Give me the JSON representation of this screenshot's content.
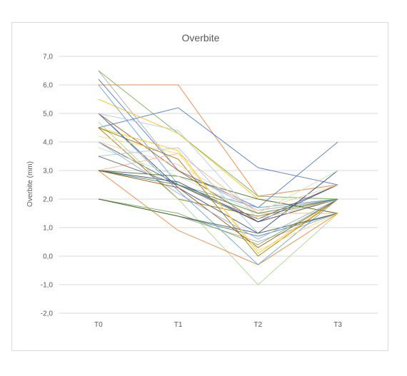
{
  "chart_data": {
    "type": "line",
    "title": "Overbite",
    "xlabel": "",
    "ylabel": "Overbite (mm)",
    "categories": [
      "T0",
      "T1",
      "T2",
      "T3"
    ],
    "ylim": [
      -2,
      7
    ],
    "yticks": [
      -2,
      -1,
      0,
      1,
      2,
      3,
      4,
      5,
      6,
      7
    ],
    "ytick_labels": [
      "-2,0",
      "-1,0",
      "0,0",
      "1,0",
      "2,0",
      "3,0",
      "4,0",
      "5,0",
      "6,0",
      "7,0"
    ],
    "grid": true,
    "legend": "none",
    "series": [
      {
        "color": "#ed7d31",
        "values": [
          6.0,
          6.0,
          2.1,
          2.5
        ]
      },
      {
        "color": "#4472c4",
        "values": [
          4.5,
          5.2,
          3.1,
          2.5
        ]
      },
      {
        "color": "#4472c4",
        "values": [
          6.2,
          3.0,
          1.7,
          4.0
        ]
      },
      {
        "color": "#a5a5a5",
        "values": [
          6.5,
          3.0,
          1.6,
          2.0
        ]
      },
      {
        "color": "#70ad47",
        "values": [
          6.5,
          4.3,
          2.1,
          2.0
        ]
      },
      {
        "color": "#ffc000",
        "values": [
          5.5,
          4.3,
          2.0,
          1.5
        ]
      },
      {
        "color": "#5b9bd5",
        "values": [
          6.0,
          2.5,
          1.7,
          2.0
        ]
      },
      {
        "color": "#9e480e",
        "values": [
          5.0,
          3.0,
          1.2,
          2.0
        ]
      },
      {
        "color": "#264478",
        "values": [
          5.0,
          2.4,
          0.8,
          3.0
        ]
      },
      {
        "color": "#636363",
        "values": [
          4.0,
          2.5,
          1.2,
          2.0
        ]
      },
      {
        "color": "#997300",
        "values": [
          4.5,
          2.0,
          1.4,
          2.0
        ]
      },
      {
        "color": "#43682b",
        "values": [
          3.0,
          2.8,
          2.0,
          1.5
        ]
      },
      {
        "color": "#f4b183",
        "values": [
          3.0,
          3.6,
          1.5,
          1.5
        ]
      },
      {
        "color": "#9dc3e6",
        "values": [
          3.5,
          3.8,
          0.8,
          1.5
        ]
      },
      {
        "color": "#a9d18e",
        "values": [
          4.7,
          2.0,
          -1.0,
          1.5
        ]
      },
      {
        "color": "#ed7d31",
        "values": [
          3.0,
          0.9,
          -0.3,
          1.5
        ]
      },
      {
        "color": "#4472c4",
        "values": [
          2.0,
          1.4,
          0.7,
          1.5
        ]
      },
      {
        "color": "#a5a5a5",
        "values": [
          2.0,
          1.4,
          0.5,
          1.5
        ]
      },
      {
        "color": "#ffc000",
        "values": [
          4.5,
          3.7,
          0.1,
          2.0
        ]
      },
      {
        "color": "#5b9bd5",
        "values": [
          5.0,
          2.3,
          -0.3,
          2.0
        ]
      },
      {
        "color": "#70ad47",
        "values": [
          2.0,
          1.5,
          0.4,
          2.0
        ]
      },
      {
        "color": "#264478",
        "values": [
          3.0,
          2.6,
          1.2,
          2.5
        ]
      },
      {
        "color": "#9e480e",
        "values": [
          3.0,
          2.4,
          0.3,
          2.0
        ]
      },
      {
        "color": "#636363",
        "values": [
          3.5,
          2.5,
          1.3,
          2.5
        ]
      },
      {
        "color": "#997300",
        "values": [
          4.5,
          3.4,
          0.0,
          2.0
        ]
      },
      {
        "color": "#43682b",
        "values": [
          2.0,
          1.4,
          0.8,
          1.5
        ]
      },
      {
        "color": "#ffd966",
        "values": [
          4.2,
          3.6,
          0.2,
          1.5
        ]
      },
      {
        "color": "#f8cbad",
        "values": [
          4.0,
          3.2,
          1.6,
          2.5
        ]
      },
      {
        "color": "#b4c7e7",
        "values": [
          5.0,
          4.4,
          1.3,
          2.0
        ]
      },
      {
        "color": "#c5e0b4",
        "values": [
          3.8,
          2.8,
          1.5,
          3.0
        ]
      },
      {
        "color": "#8faadc",
        "values": [
          4.0,
          2.2,
          0.6,
          2.0
        ]
      },
      {
        "color": "#548235",
        "values": [
          3.0,
          2.5,
          1.5,
          2.0
        ]
      }
    ]
  }
}
